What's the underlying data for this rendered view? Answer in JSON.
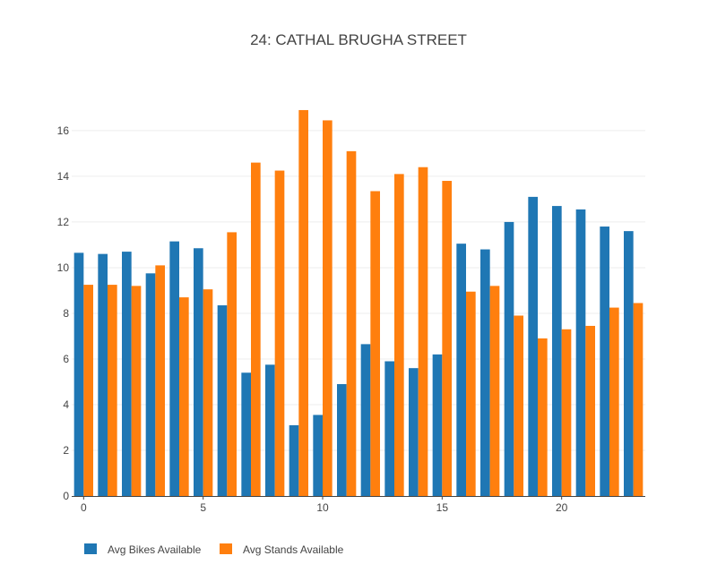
{
  "chart_data": {
    "type": "bar",
    "title": "24: CATHAL BRUGHA STREET",
    "xlabel": "",
    "ylabel": "",
    "x": [
      0,
      1,
      2,
      3,
      4,
      5,
      6,
      7,
      8,
      9,
      10,
      11,
      12,
      13,
      14,
      15,
      16,
      17,
      18,
      19,
      20,
      21,
      22,
      23
    ],
    "x_ticks": [
      0,
      5,
      10,
      15,
      20
    ],
    "x_tick_labels": [
      "0",
      "5",
      "10",
      "15",
      "20"
    ],
    "y_ticks": [
      0,
      2,
      4,
      6,
      8,
      10,
      12,
      14,
      16
    ],
    "y_tick_labels": [
      "0",
      "2",
      "4",
      "6",
      "8",
      "10",
      "12",
      "14",
      "16"
    ],
    "ylim": [
      0,
      17.8
    ],
    "xlim": [
      -0.5,
      23.5
    ],
    "grid": true,
    "legend_placement": "bottom-left",
    "series": [
      {
        "name": "Avg Bikes Available",
        "color": "#1f77b4",
        "values": [
          10.65,
          10.6,
          10.7,
          9.75,
          11.15,
          10.85,
          8.35,
          5.4,
          5.75,
          3.1,
          3.55,
          4.9,
          6.65,
          5.9,
          5.6,
          6.2,
          11.05,
          10.8,
          12.0,
          13.1,
          12.7,
          12.55,
          11.8,
          11.6
        ]
      },
      {
        "name": "Avg Stands Available",
        "color": "#ff7f0e",
        "values": [
          9.25,
          9.25,
          9.2,
          10.1,
          8.7,
          9.05,
          11.55,
          14.6,
          14.25,
          16.9,
          16.45,
          15.1,
          13.35,
          14.1,
          14.4,
          13.8,
          8.95,
          9.2,
          7.9,
          6.9,
          7.3,
          7.45,
          8.25,
          8.45
        ]
      }
    ]
  }
}
